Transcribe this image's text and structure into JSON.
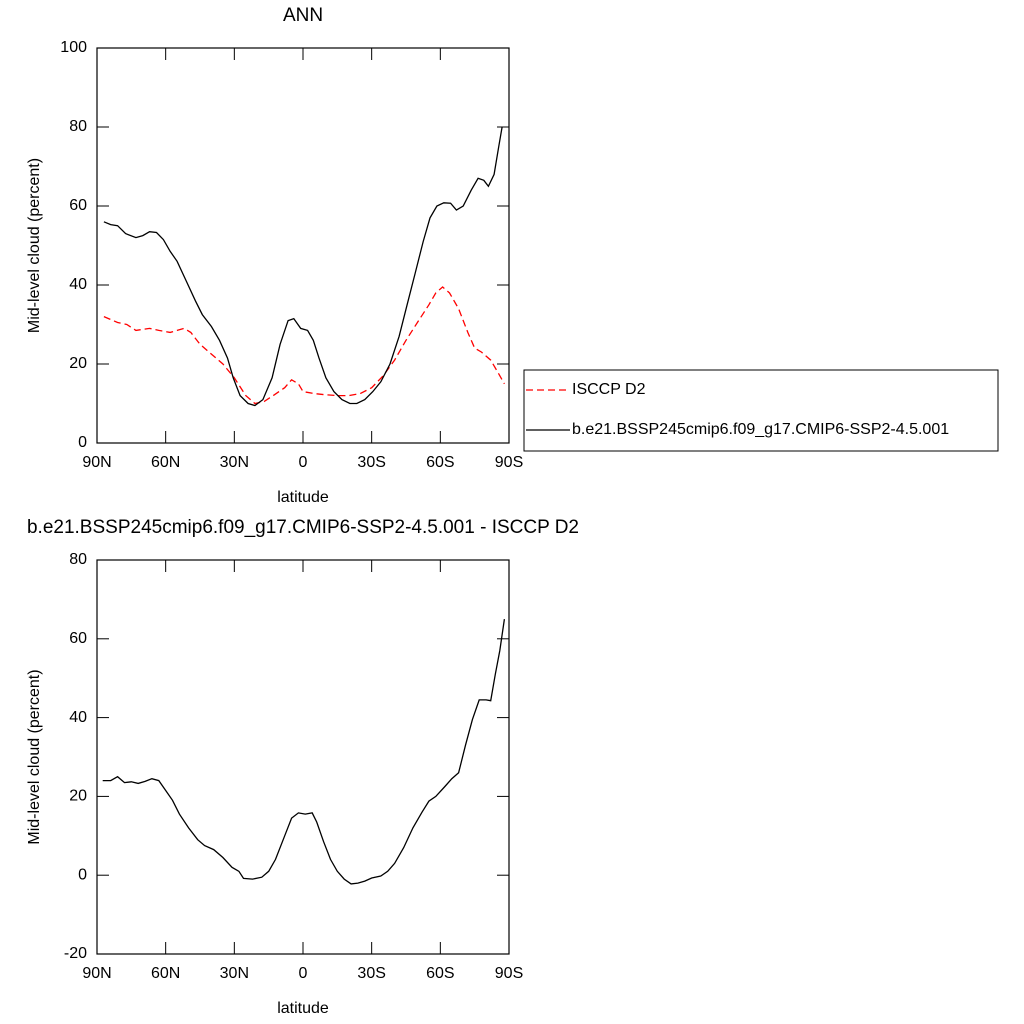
{
  "chart_data": [
    {
      "type": "line",
      "title": "ANN",
      "y_label": "Mid-level cloud (percent)",
      "x_label": "latitude",
      "xlim": [
        90,
        -90
      ],
      "ylim": [
        0,
        100
      ],
      "yticks": [
        0,
        20,
        40,
        60,
        80,
        100
      ],
      "xticks": [
        {
          "value": 90,
          "label": "90N"
        },
        {
          "value": 60,
          "label": "60N"
        },
        {
          "value": 30,
          "label": "30N"
        },
        {
          "value": 0,
          "label": "0"
        },
        {
          "value": -30,
          "label": "30S"
        },
        {
          "value": -60,
          "label": "60S"
        },
        {
          "value": -90,
          "label": "90S"
        }
      ],
      "legend": "outside-right",
      "series": [
        {
          "name": "ISCCP D2",
          "color": "#ff0000",
          "line_style": "dashed",
          "x": [
            87,
            81,
            77,
            73,
            67,
            63,
            58,
            55,
            52,
            49,
            45,
            40,
            35,
            30,
            25,
            21,
            17,
            13,
            8,
            5,
            2,
            0,
            -5,
            -10,
            -15,
            -20,
            -25,
            -30,
            -35,
            -40,
            -45,
            -50,
            -55,
            -58,
            -61,
            -64,
            -68,
            -72,
            -75,
            -78,
            -82,
            -85,
            -88
          ],
          "values": [
            32,
            30.5,
            30,
            28.5,
            29,
            28.5,
            28,
            28.5,
            29,
            28,
            25,
            22.5,
            20,
            16.5,
            12,
            10,
            10.5,
            12,
            14,
            16,
            15,
            13,
            12.5,
            12.2,
            12,
            12,
            12.5,
            14,
            17,
            21,
            26,
            30.5,
            35,
            38,
            39.5,
            38,
            34,
            28,
            24,
            23,
            21,
            18,
            15
          ]
        },
        {
          "name": "b.e21.BSSP245cmip6.f09_g17.CMIP6-SSP2-4.5.001",
          "color": "#000000",
          "line_style": "solid",
          "x": [
            87,
            84,
            81,
            77.5,
            73,
            70,
            67,
            64,
            61,
            58,
            55,
            51,
            47,
            44,
            40,
            36.5,
            33,
            30.5,
            27.5,
            24,
            21,
            17.5,
            13.5,
            10,
            6.5,
            4,
            1,
            -2,
            -4.5,
            -7,
            -10,
            -13.5,
            -17,
            -20.5,
            -23.5,
            -27,
            -30.5,
            -34,
            -38,
            -42,
            -45.5,
            -49,
            -52.5,
            -55.5,
            -58.5,
            -61.5,
            -64.5,
            -67,
            -70,
            -73.5,
            -76.5,
            -79,
            -81,
            -83.5,
            -85.5,
            -87
          ],
          "values": [
            56,
            55.3,
            55,
            53,
            52,
            52.5,
            53.5,
            53.3,
            51.5,
            48.5,
            46,
            41,
            36,
            32.5,
            29.5,
            26,
            21.5,
            16.5,
            12,
            10,
            9.5,
            11,
            16.5,
            25,
            31,
            31.5,
            29,
            28.5,
            26,
            21.5,
            16.5,
            13,
            11,
            10,
            10,
            11,
            13,
            15.5,
            20,
            27,
            35,
            43,
            51,
            57,
            60,
            60.8,
            60.7,
            59,
            60,
            64,
            67,
            66.5,
            65,
            68,
            75,
            80
          ]
        }
      ]
    },
    {
      "type": "line",
      "title": "b.e21.BSSP245cmip6.f09_g17.CMIP6-SSP2-4.5.001 - ISCCP D2",
      "y_label": "Mid-level cloud (percent)",
      "x_label": "latitude",
      "xlim": [
        90,
        -90
      ],
      "ylim": [
        -20,
        80
      ],
      "yticks": [
        -20,
        0,
        20,
        40,
        60,
        80
      ],
      "xticks": [
        {
          "value": 90,
          "label": "90N"
        },
        {
          "value": 60,
          "label": "60N"
        },
        {
          "value": 30,
          "label": "30N"
        },
        {
          "value": 0,
          "label": "0"
        },
        {
          "value": -30,
          "label": "30S"
        },
        {
          "value": -60,
          "label": "60S"
        },
        {
          "value": -90,
          "label": "90S"
        }
      ],
      "series": [
        {
          "color": "#000000",
          "line_style": "solid",
          "x": [
            87.5,
            84,
            81,
            78,
            75,
            72,
            69,
            66,
            63,
            60,
            57,
            54,
            50,
            46,
            43,
            39,
            35,
            31,
            28,
            26,
            22,
            18,
            15,
            12,
            8,
            5,
            2,
            -1,
            -4,
            -6,
            -9,
            -12,
            -15,
            -18,
            -21,
            -24,
            -27,
            -30,
            -34,
            -37,
            -40,
            -44,
            -48,
            -52,
            -55,
            -58,
            -62,
            -65,
            -68,
            -71,
            -74,
            -77,
            -80,
            -82,
            -84,
            -86,
            -88
          ],
          "values": [
            24,
            24,
            25,
            23.5,
            23.7,
            23.3,
            23.8,
            24.5,
            24,
            21.5,
            19,
            15.5,
            12,
            9,
            7.5,
            6.5,
            4.5,
            2,
            1,
            -0.8,
            -1,
            -0.5,
            1,
            4,
            10,
            14.5,
            15.8,
            15.5,
            15.8,
            13.5,
            8.5,
            4,
            1,
            -1,
            -2.2,
            -2,
            -1.5,
            -0.7,
            -0.2,
            1,
            3,
            7,
            12,
            16,
            18.8,
            20,
            22.5,
            24.5,
            26,
            33,
            39.5,
            44.5,
            44.5,
            44.3,
            51,
            57,
            65
          ]
        }
      ]
    }
  ]
}
